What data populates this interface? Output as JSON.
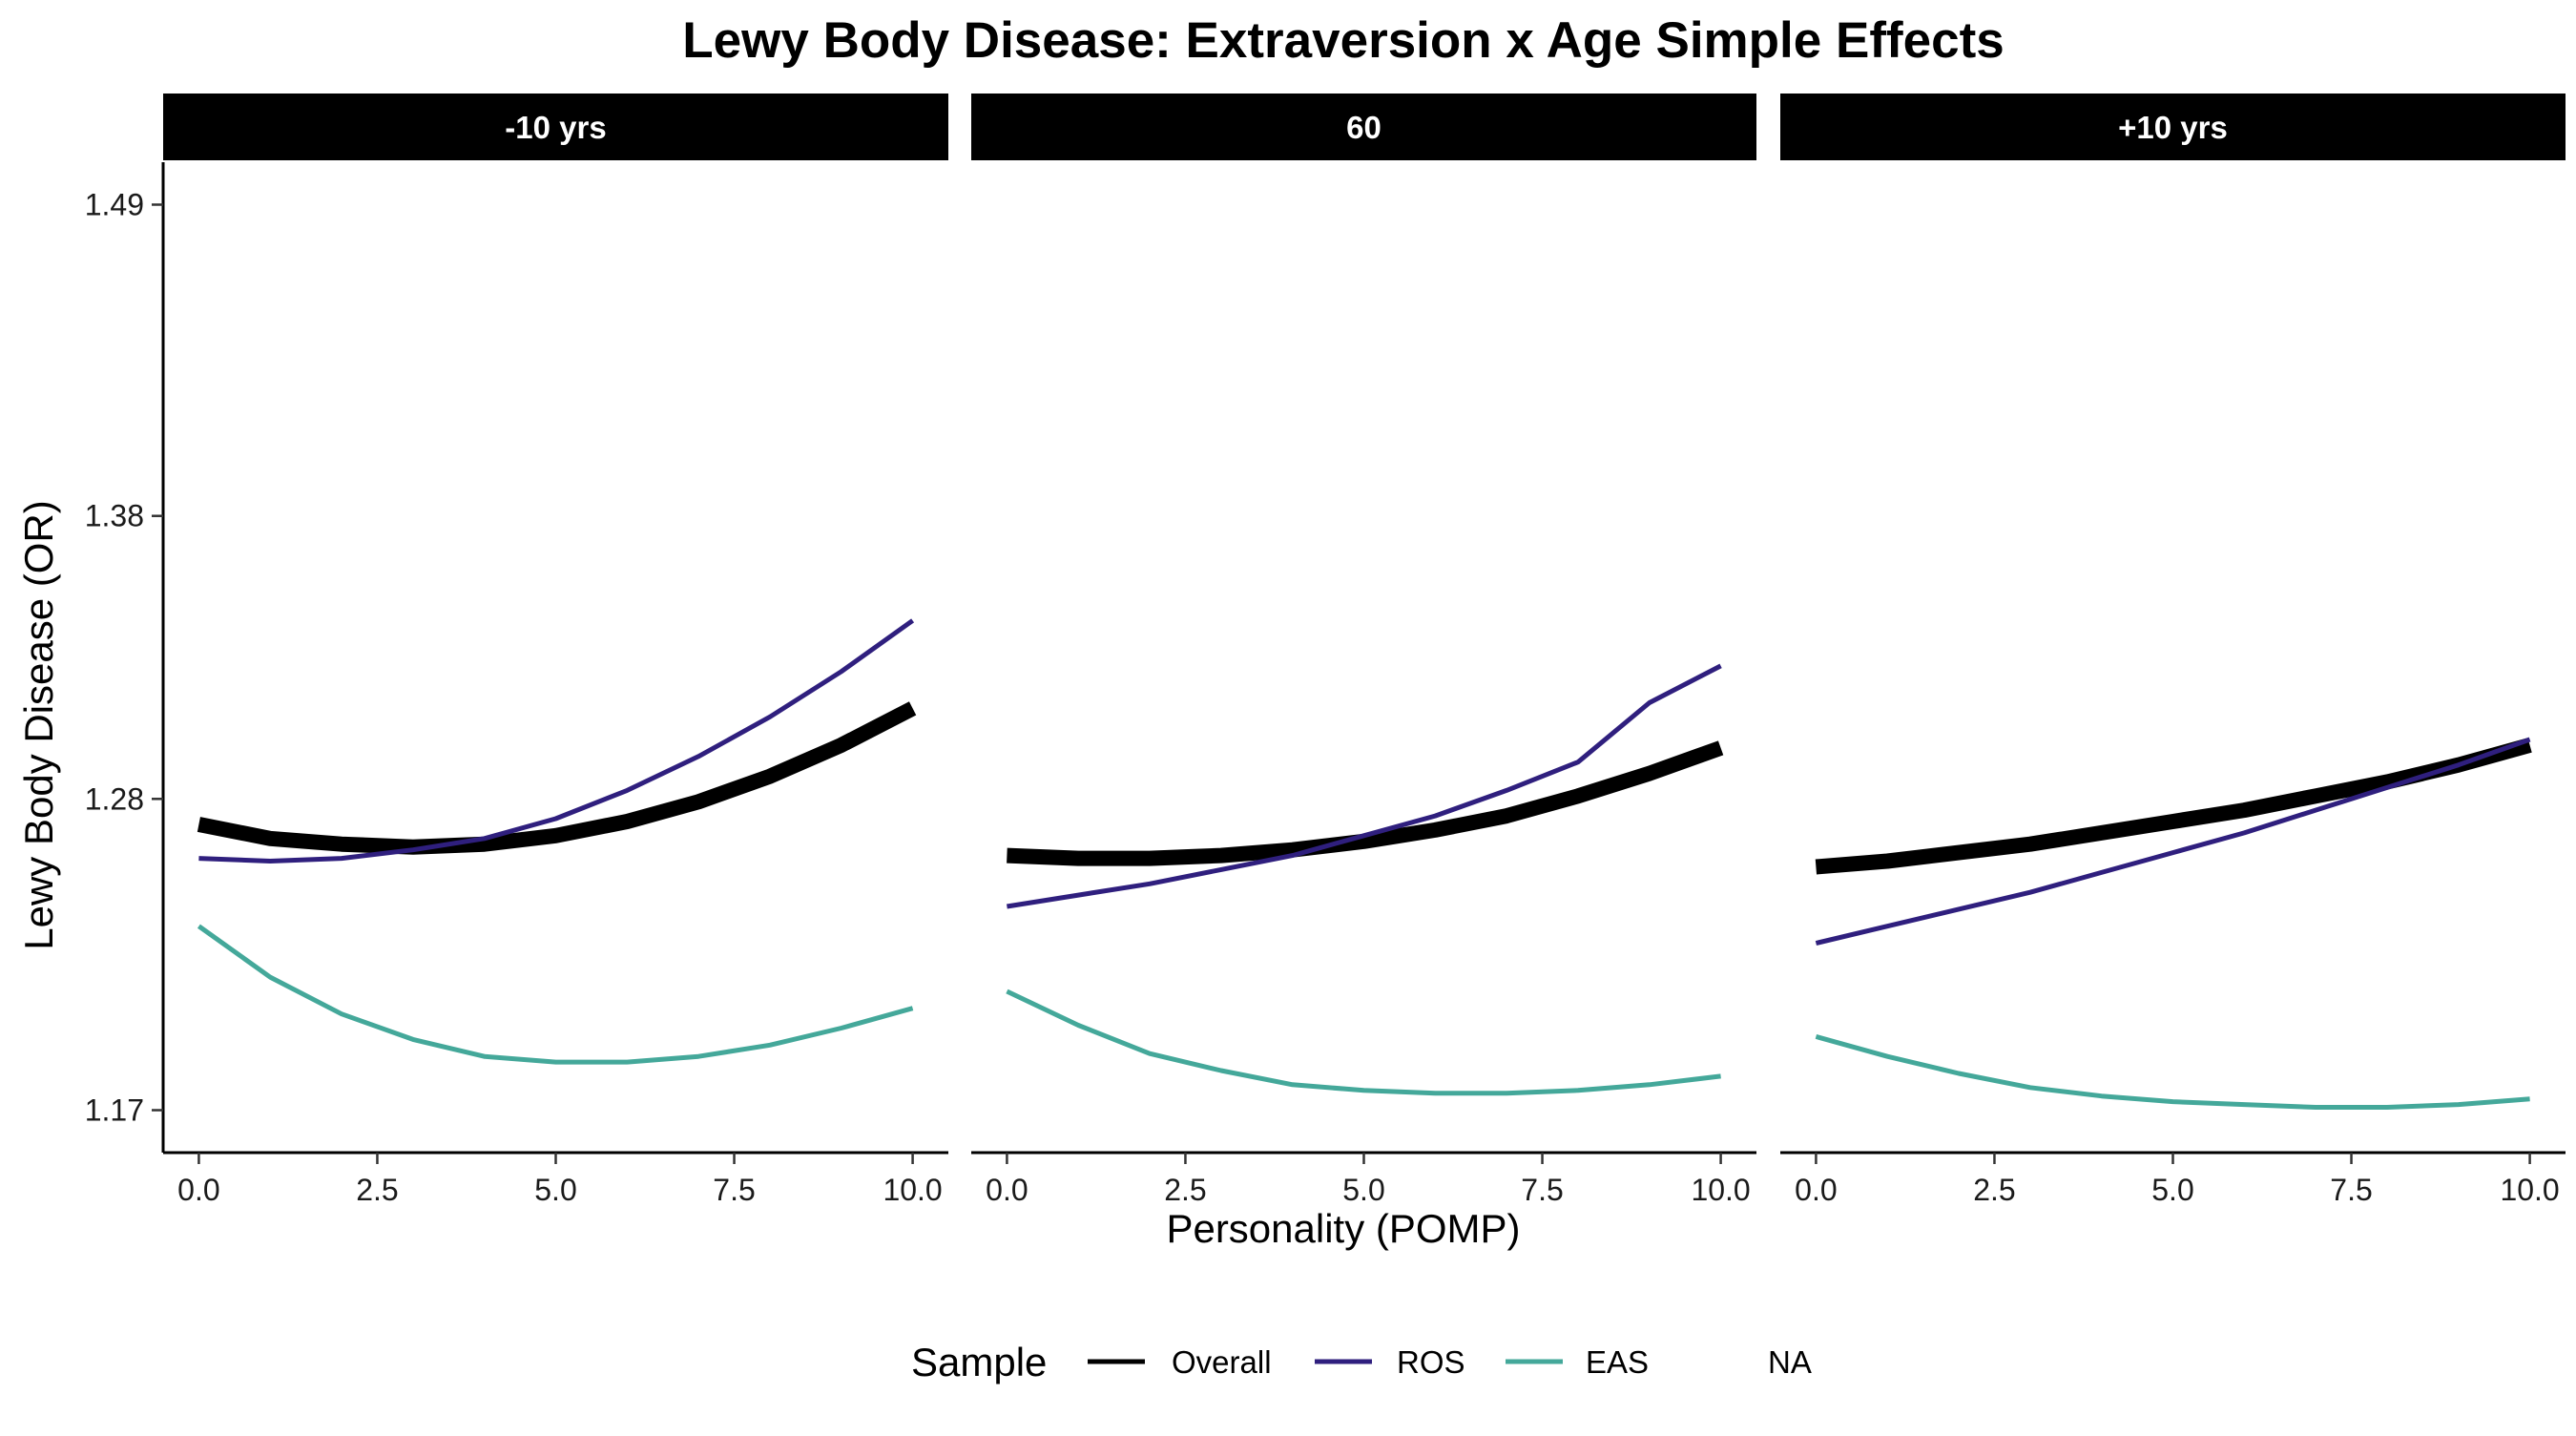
{
  "chart_data": {
    "type": "line",
    "title": "Lewy Body Disease: Extraversion x Age Simple Effects",
    "xlabel": "Personality (POMP)",
    "ylabel": "Lewy Body Disease (OR)",
    "xlim": [
      -0.5,
      10.5
    ],
    "ylim": [
      1.155,
      1.505
    ],
    "x_ticks": [
      0,
      2.5,
      5,
      7.5,
      10
    ],
    "x_tick_labels": [
      "0.0",
      "2.5",
      "5.0",
      "7.5",
      "10.0"
    ],
    "y_ticks": [
      1.17,
      1.28,
      1.38,
      1.49
    ],
    "y_tick_labels": [
      "1.17",
      "1.28",
      "1.38",
      "1.49"
    ],
    "grid": false,
    "legend": {
      "title": "Sample",
      "position": "bottom",
      "entries": [
        {
          "label": "Overall",
          "color": "#000000"
        },
        {
          "label": "ROS",
          "color": "#2f1f7e"
        },
        {
          "label": "EAS",
          "color": "#44a89a"
        },
        {
          "label": "NA",
          "color": null
        }
      ]
    },
    "panels": [
      {
        "label": "-10 yrs",
        "x": [
          0,
          1,
          2,
          3,
          4,
          5,
          6,
          7,
          8,
          9,
          10
        ],
        "series": [
          {
            "name": "Overall",
            "color": "#000000",
            "width": "thick",
            "values": [
              1.271,
              1.266,
              1.264,
              1.263,
              1.264,
              1.267,
              1.272,
              1.279,
              1.288,
              1.299,
              1.312
            ]
          },
          {
            "name": "ROS",
            "color": "#2f1f7e",
            "width": "thin",
            "values": [
              1.259,
              1.258,
              1.259,
              1.262,
              1.266,
              1.273,
              1.283,
              1.295,
              1.309,
              1.325,
              1.343
            ]
          },
          {
            "name": "EAS",
            "color": "#44a89a",
            "width": "thin",
            "values": [
              1.235,
              1.217,
              1.204,
              1.195,
              1.189,
              1.187,
              1.187,
              1.189,
              1.193,
              1.199,
              1.206
            ]
          }
        ]
      },
      {
        "label": "60",
        "x": [
          0,
          1,
          2,
          3,
          4,
          5,
          6,
          7,
          8,
          9,
          10
        ],
        "series": [
          {
            "name": "Overall",
            "color": "#000000",
            "width": "thick",
            "values": [
              1.26,
              1.259,
              1.259,
              1.26,
              1.262,
              1.265,
              1.269,
              1.274,
              1.281,
              1.289,
              1.298
            ]
          },
          {
            "name": "ROS",
            "color": "#2f1f7e",
            "width": "thin",
            "values": [
              1.242,
              1.246,
              1.25,
              1.255,
              1.26,
              1.267,
              1.274,
              1.283,
              1.293,
              1.314,
              1.327
            ]
          },
          {
            "name": "EAS",
            "color": "#44a89a",
            "width": "thin",
            "values": [
              1.212,
              1.2,
              1.19,
              1.184,
              1.179,
              1.177,
              1.176,
              1.176,
              1.177,
              1.179,
              1.182
            ]
          }
        ]
      },
      {
        "label": "+10 yrs",
        "x": [
          0,
          1,
          2,
          3,
          4,
          5,
          6,
          7,
          8,
          9,
          10
        ],
        "series": [
          {
            "name": "Overall",
            "color": "#000000",
            "width": "thick",
            "values": [
              1.256,
              1.258,
              1.261,
              1.264,
              1.268,
              1.272,
              1.276,
              1.281,
              1.286,
              1.292,
              1.299
            ]
          },
          {
            "name": "ROS",
            "color": "#2f1f7e",
            "width": "thin",
            "values": [
              1.229,
              1.235,
              1.241,
              1.247,
              1.254,
              1.261,
              1.268,
              1.276,
              1.284,
              1.292,
              1.301
            ]
          },
          {
            "name": "EAS",
            "color": "#44a89a",
            "width": "thin",
            "values": [
              1.196,
              1.189,
              1.183,
              1.178,
              1.175,
              1.173,
              1.172,
              1.171,
              1.171,
              1.172,
              1.174
            ]
          }
        ]
      }
    ]
  }
}
